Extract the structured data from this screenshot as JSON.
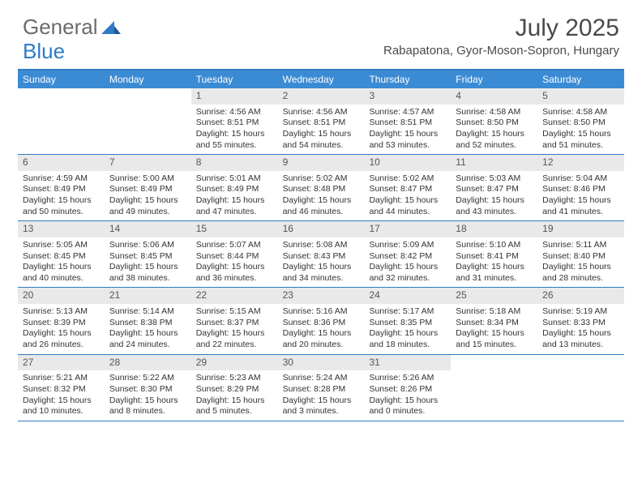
{
  "logo": {
    "part1": "General",
    "part2": "Blue"
  },
  "title": "July 2025",
  "subtitle": "Rabapatona, Gyor-Moson-Sopron, Hungary",
  "colors": {
    "header_bg": "#3b8bd4",
    "accent_border": "#2f7bc4",
    "daynum_bg": "#e9e9e9",
    "text": "#333333",
    "logo_gray": "#6b6b6b"
  },
  "day_names": [
    "Sunday",
    "Monday",
    "Tuesday",
    "Wednesday",
    "Thursday",
    "Friday",
    "Saturday"
  ],
  "weeks": [
    [
      null,
      null,
      {
        "n": "1",
        "sr": "Sunrise: 4:56 AM",
        "ss": "Sunset: 8:51 PM",
        "d1": "Daylight: 15 hours",
        "d2": "and 55 minutes."
      },
      {
        "n": "2",
        "sr": "Sunrise: 4:56 AM",
        "ss": "Sunset: 8:51 PM",
        "d1": "Daylight: 15 hours",
        "d2": "and 54 minutes."
      },
      {
        "n": "3",
        "sr": "Sunrise: 4:57 AM",
        "ss": "Sunset: 8:51 PM",
        "d1": "Daylight: 15 hours",
        "d2": "and 53 minutes."
      },
      {
        "n": "4",
        "sr": "Sunrise: 4:58 AM",
        "ss": "Sunset: 8:50 PM",
        "d1": "Daylight: 15 hours",
        "d2": "and 52 minutes."
      },
      {
        "n": "5",
        "sr": "Sunrise: 4:58 AM",
        "ss": "Sunset: 8:50 PM",
        "d1": "Daylight: 15 hours",
        "d2": "and 51 minutes."
      }
    ],
    [
      {
        "n": "6",
        "sr": "Sunrise: 4:59 AM",
        "ss": "Sunset: 8:49 PM",
        "d1": "Daylight: 15 hours",
        "d2": "and 50 minutes."
      },
      {
        "n": "7",
        "sr": "Sunrise: 5:00 AM",
        "ss": "Sunset: 8:49 PM",
        "d1": "Daylight: 15 hours",
        "d2": "and 49 minutes."
      },
      {
        "n": "8",
        "sr": "Sunrise: 5:01 AM",
        "ss": "Sunset: 8:49 PM",
        "d1": "Daylight: 15 hours",
        "d2": "and 47 minutes."
      },
      {
        "n": "9",
        "sr": "Sunrise: 5:02 AM",
        "ss": "Sunset: 8:48 PM",
        "d1": "Daylight: 15 hours",
        "d2": "and 46 minutes."
      },
      {
        "n": "10",
        "sr": "Sunrise: 5:02 AM",
        "ss": "Sunset: 8:47 PM",
        "d1": "Daylight: 15 hours",
        "d2": "and 44 minutes."
      },
      {
        "n": "11",
        "sr": "Sunrise: 5:03 AM",
        "ss": "Sunset: 8:47 PM",
        "d1": "Daylight: 15 hours",
        "d2": "and 43 minutes."
      },
      {
        "n": "12",
        "sr": "Sunrise: 5:04 AM",
        "ss": "Sunset: 8:46 PM",
        "d1": "Daylight: 15 hours",
        "d2": "and 41 minutes."
      }
    ],
    [
      {
        "n": "13",
        "sr": "Sunrise: 5:05 AM",
        "ss": "Sunset: 8:45 PM",
        "d1": "Daylight: 15 hours",
        "d2": "and 40 minutes."
      },
      {
        "n": "14",
        "sr": "Sunrise: 5:06 AM",
        "ss": "Sunset: 8:45 PM",
        "d1": "Daylight: 15 hours",
        "d2": "and 38 minutes."
      },
      {
        "n": "15",
        "sr": "Sunrise: 5:07 AM",
        "ss": "Sunset: 8:44 PM",
        "d1": "Daylight: 15 hours",
        "d2": "and 36 minutes."
      },
      {
        "n": "16",
        "sr": "Sunrise: 5:08 AM",
        "ss": "Sunset: 8:43 PM",
        "d1": "Daylight: 15 hours",
        "d2": "and 34 minutes."
      },
      {
        "n": "17",
        "sr": "Sunrise: 5:09 AM",
        "ss": "Sunset: 8:42 PM",
        "d1": "Daylight: 15 hours",
        "d2": "and 32 minutes."
      },
      {
        "n": "18",
        "sr": "Sunrise: 5:10 AM",
        "ss": "Sunset: 8:41 PM",
        "d1": "Daylight: 15 hours",
        "d2": "and 31 minutes."
      },
      {
        "n": "19",
        "sr": "Sunrise: 5:11 AM",
        "ss": "Sunset: 8:40 PM",
        "d1": "Daylight: 15 hours",
        "d2": "and 28 minutes."
      }
    ],
    [
      {
        "n": "20",
        "sr": "Sunrise: 5:13 AM",
        "ss": "Sunset: 8:39 PM",
        "d1": "Daylight: 15 hours",
        "d2": "and 26 minutes."
      },
      {
        "n": "21",
        "sr": "Sunrise: 5:14 AM",
        "ss": "Sunset: 8:38 PM",
        "d1": "Daylight: 15 hours",
        "d2": "and 24 minutes."
      },
      {
        "n": "22",
        "sr": "Sunrise: 5:15 AM",
        "ss": "Sunset: 8:37 PM",
        "d1": "Daylight: 15 hours",
        "d2": "and 22 minutes."
      },
      {
        "n": "23",
        "sr": "Sunrise: 5:16 AM",
        "ss": "Sunset: 8:36 PM",
        "d1": "Daylight: 15 hours",
        "d2": "and 20 minutes."
      },
      {
        "n": "24",
        "sr": "Sunrise: 5:17 AM",
        "ss": "Sunset: 8:35 PM",
        "d1": "Daylight: 15 hours",
        "d2": "and 18 minutes."
      },
      {
        "n": "25",
        "sr": "Sunrise: 5:18 AM",
        "ss": "Sunset: 8:34 PM",
        "d1": "Daylight: 15 hours",
        "d2": "and 15 minutes."
      },
      {
        "n": "26",
        "sr": "Sunrise: 5:19 AM",
        "ss": "Sunset: 8:33 PM",
        "d1": "Daylight: 15 hours",
        "d2": "and 13 minutes."
      }
    ],
    [
      {
        "n": "27",
        "sr": "Sunrise: 5:21 AM",
        "ss": "Sunset: 8:32 PM",
        "d1": "Daylight: 15 hours",
        "d2": "and 10 minutes."
      },
      {
        "n": "28",
        "sr": "Sunrise: 5:22 AM",
        "ss": "Sunset: 8:30 PM",
        "d1": "Daylight: 15 hours",
        "d2": "and 8 minutes."
      },
      {
        "n": "29",
        "sr": "Sunrise: 5:23 AM",
        "ss": "Sunset: 8:29 PM",
        "d1": "Daylight: 15 hours",
        "d2": "and 5 minutes."
      },
      {
        "n": "30",
        "sr": "Sunrise: 5:24 AM",
        "ss": "Sunset: 8:28 PM",
        "d1": "Daylight: 15 hours",
        "d2": "and 3 minutes."
      },
      {
        "n": "31",
        "sr": "Sunrise: 5:26 AM",
        "ss": "Sunset: 8:26 PM",
        "d1": "Daylight: 15 hours",
        "d2": "and 0 minutes."
      },
      null,
      null
    ]
  ]
}
